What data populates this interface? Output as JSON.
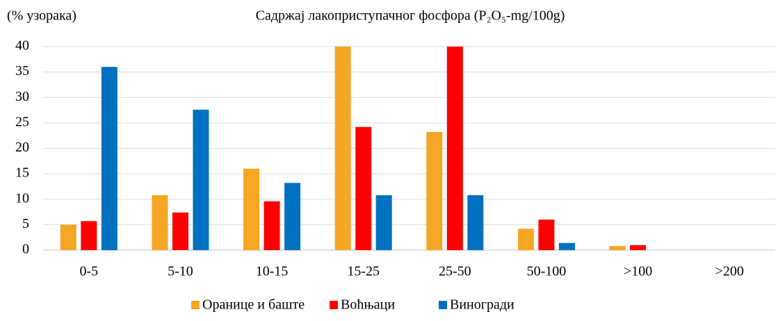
{
  "chart_data": {
    "type": "bar",
    "title": "Садржај лакоприступачног фосфора (P₂O₅-mg/100g)",
    "y_label": "(% узорака)",
    "categories": [
      "0-5",
      "5-10",
      "10-15",
      "15-25",
      "25-50",
      "50-100",
      ">100",
      ">200"
    ],
    "series": [
      {
        "name": "Оранице и баште",
        "color": "#f5a623",
        "values": [
          5,
          10.8,
          16,
          40,
          23.2,
          4.2,
          0.8,
          0
        ]
      },
      {
        "name": "Воћњаци",
        "color": "#ff0000",
        "values": [
          5.7,
          7.4,
          9.6,
          24.2,
          40,
          6,
          1,
          0
        ]
      },
      {
        "name": "Виногради",
        "color": "#0070c0",
        "values": [
          36,
          27.6,
          13.2,
          10.8,
          10.8,
          1.4,
          0,
          0
        ]
      }
    ],
    "ylim": [
      0,
      40
    ],
    "yticks": [
      0,
      5,
      10,
      15,
      20,
      25,
      30,
      35,
      40
    ],
    "grid": true,
    "legend": "bottom"
  }
}
